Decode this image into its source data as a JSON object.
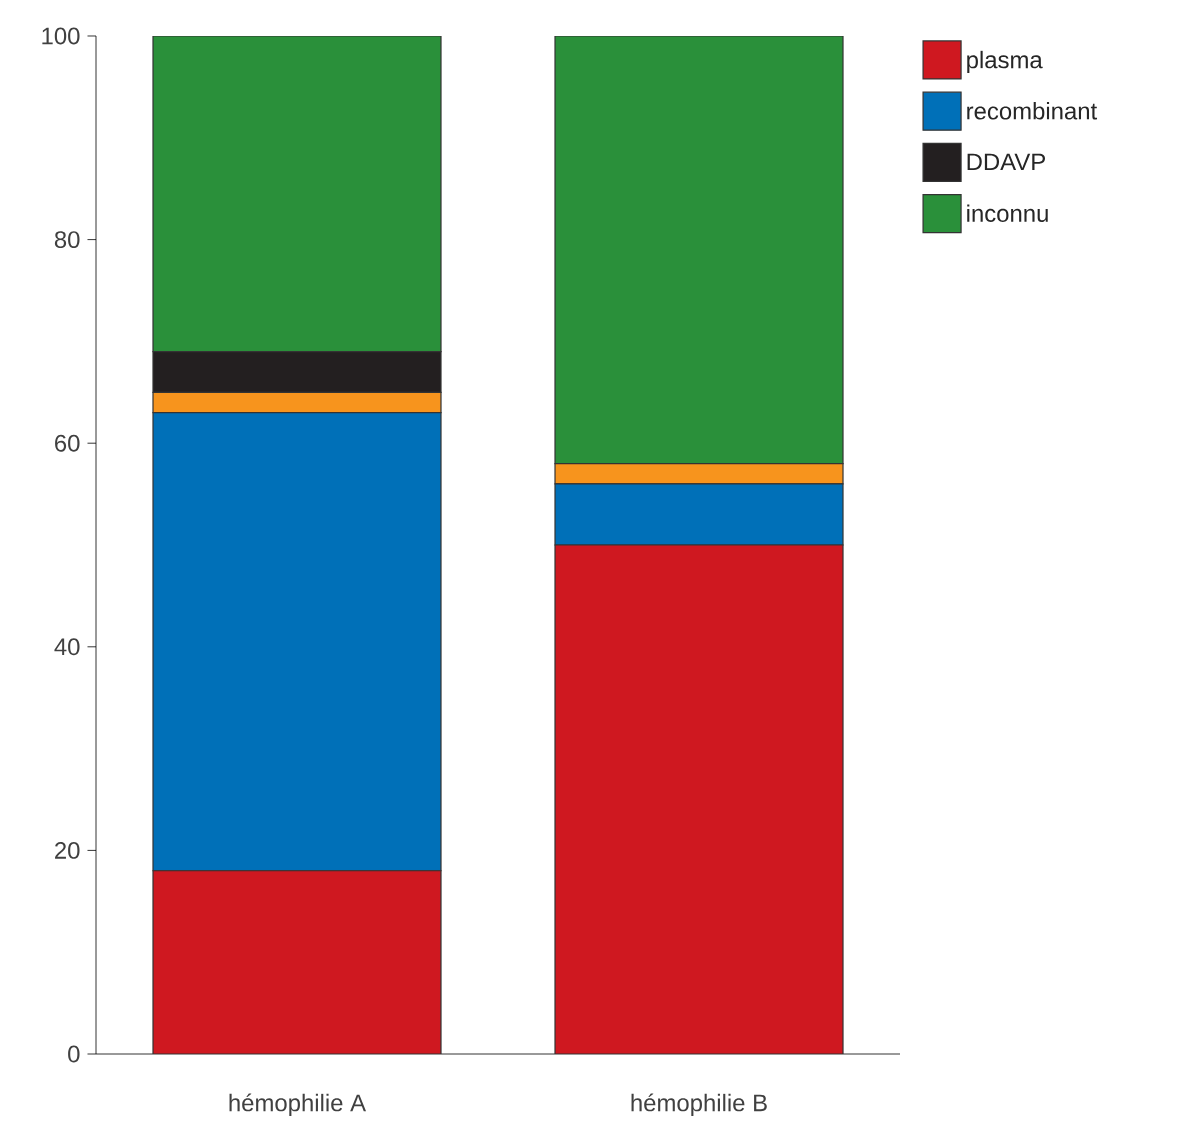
{
  "chart_data": {
    "type": "bar",
    "stacked": true,
    "categories": [
      "hémophilie A",
      "hémophilie B"
    ],
    "series": [
      {
        "name": "plasma",
        "color": "#cf1820",
        "values": [
          18,
          50
        ]
      },
      {
        "name": "recombinant",
        "color": "#0070b8",
        "values": [
          45,
          6
        ]
      },
      {
        "color": "#f7941d",
        "values": [
          2,
          2
        ]
      },
      {
        "name": "DDAVP",
        "color": "#231f20",
        "values": [
          4,
          0
        ]
      },
      {
        "name": "inconnu",
        "color": "#2a903a",
        "values": [
          31,
          42
        ]
      }
    ],
    "ylim": [
      0,
      100
    ],
    "yticks": [
      0,
      20,
      40,
      60,
      80,
      100
    ],
    "grid": false,
    "legend": "top right"
  }
}
